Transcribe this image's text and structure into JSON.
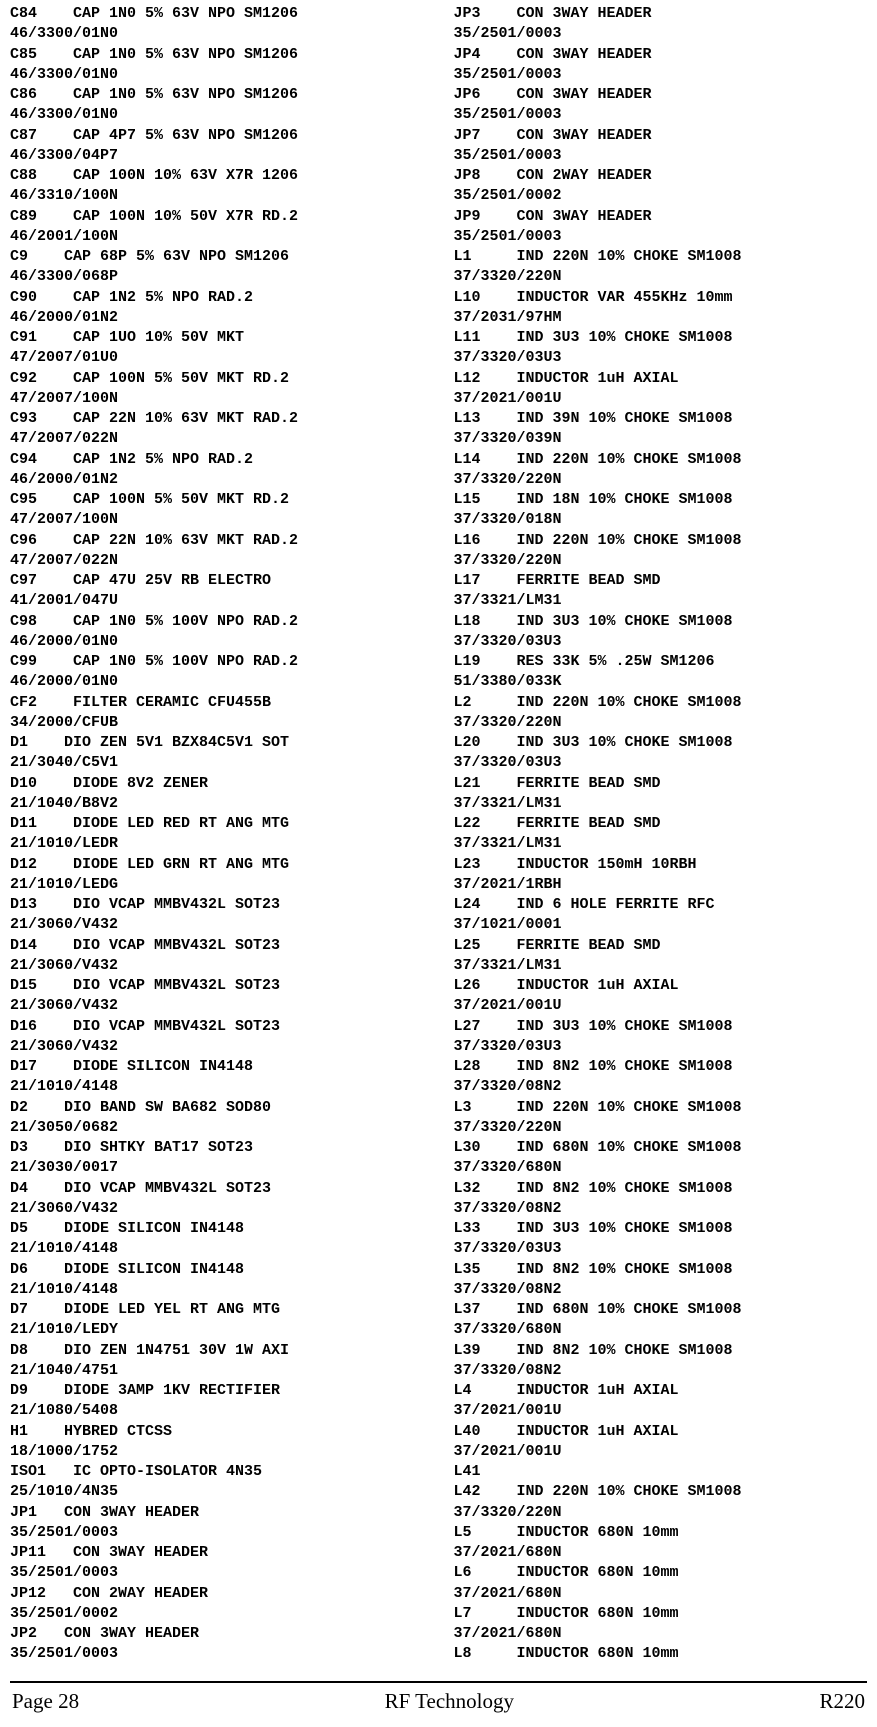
{
  "left_lines": [
    "C84    CAP 1N0 5% 63V NPO SM1206",
    "46/3300/01N0",
    "C85    CAP 1N0 5% 63V NPO SM1206",
    "46/3300/01N0",
    "C86    CAP 1N0 5% 63V NPO SM1206",
    "46/3300/01N0",
    "C87    CAP 4P7 5% 63V NPO SM1206",
    "46/3300/04P7",
    "C88    CAP 100N 10% 63V X7R 1206",
    "46/3310/100N",
    "C89    CAP 100N 10% 50V X7R RD.2",
    "46/2001/100N",
    "C9    CAP 68P 5% 63V NPO SM1206",
    "46/3300/068P",
    "C90    CAP 1N2 5% NPO RAD.2",
    "46/2000/01N2",
    "C91    CAP 1UO 10% 50V MKT",
    "47/2007/01U0",
    "C92    CAP 100N 5% 50V MKT RD.2",
    "47/2007/100N",
    "C93    CAP 22N 10% 63V MKT RAD.2",
    "47/2007/022N",
    "C94    CAP 1N2 5% NPO RAD.2",
    "46/2000/01N2",
    "C95    CAP 100N 5% 50V MKT RD.2",
    "47/2007/100N",
    "C96    CAP 22N 10% 63V MKT RAD.2",
    "47/2007/022N",
    "C97    CAP 47U 25V RB ELECTRO",
    "41/2001/047U",
    "C98    CAP 1N0 5% 100V NPO RAD.2",
    "46/2000/01N0",
    "C99    CAP 1N0 5% 100V NPO RAD.2",
    "46/2000/01N0",
    "CF2    FILTER CERAMIC CFU455B",
    "34/2000/CFUB",
    "D1    DIO ZEN 5V1 BZX84C5V1 SOT",
    "21/3040/C5V1",
    "D10    DIODE 8V2 ZENER",
    "21/1040/B8V2",
    "D11    DIODE LED RED RT ANG MTG",
    "21/1010/LEDR",
    "D12    DIODE LED GRN RT ANG MTG",
    "21/1010/LEDG",
    "D13    DIO VCAP MMBV432L SOT23",
    "21/3060/V432",
    "D14    DIO VCAP MMBV432L SOT23",
    "21/3060/V432",
    "D15    DIO VCAP MMBV432L SOT23",
    "21/3060/V432",
    "D16    DIO VCAP MMBV432L SOT23",
    "21/3060/V432",
    "D17    DIODE SILICON IN4148",
    "21/1010/4148",
    "D2    DIO BAND SW BA682 SOD80",
    "21/3050/0682",
    "D3    DIO SHTKY BAT17 SOT23",
    "21/3030/0017",
    "D4    DIO VCAP MMBV432L SOT23",
    "21/3060/V432",
    "D5    DIODE SILICON IN4148",
    "21/1010/4148",
    "D6    DIODE SILICON IN4148",
    "21/1010/4148",
    "D7    DIODE LED YEL RT ANG MTG",
    "21/1010/LEDY",
    "D8    DIO ZEN 1N4751 30V 1W AXI",
    "21/1040/4751",
    "D9    DIODE 3AMP 1KV RECTIFIER",
    "21/1080/5408",
    "H1    HYBRED CTCSS",
    "18/1000/1752",
    "ISO1   IC OPTO-ISOLATOR 4N35",
    "25/1010/4N35",
    "JP1   CON 3WAY HEADER",
    "35/2501/0003",
    "JP11   CON 3WAY HEADER",
    "35/2501/0003",
    "JP12   CON 2WAY HEADER",
    "35/2501/0002",
    "JP2   CON 3WAY HEADER",
    "35/2501/0003"
  ],
  "right_lines": [
    "JP3    CON 3WAY HEADER",
    "35/2501/0003",
    "JP4    CON 3WAY HEADER",
    "35/2501/0003",
    "JP6    CON 3WAY HEADER",
    "35/2501/0003",
    "JP7    CON 3WAY HEADER",
    "35/2501/0003",
    "JP8    CON 2WAY HEADER",
    "35/2501/0002",
    "JP9    CON 3WAY HEADER",
    "35/2501/0003",
    "L1     IND 220N 10% CHOKE SM1008",
    "37/3320/220N",
    "L10    INDUCTOR VAR 455KHz 10mm",
    "37/2031/97HM",
    "L11    IND 3U3 10% CHOKE SM1008",
    "37/3320/03U3",
    "L12    INDUCTOR 1uH AXIAL",
    "37/2021/001U",
    "L13    IND 39N 10% CHOKE SM1008",
    "37/3320/039N",
    "L14    IND 220N 10% CHOKE SM1008",
    "37/3320/220N",
    "L15    IND 18N 10% CHOKE SM1008",
    "37/3320/018N",
    "L16    IND 220N 10% CHOKE SM1008",
    "37/3320/220N",
    "L17    FERRITE BEAD SMD",
    "37/3321/LM31",
    "L18    IND 3U3 10% CHOKE SM1008",
    "37/3320/03U3",
    "L19    RES 33K 5% .25W SM1206",
    "51/3380/033K",
    "L2     IND 220N 10% CHOKE SM1008",
    "37/3320/220N",
    "L20    IND 3U3 10% CHOKE SM1008",
    "37/3320/03U3",
    "L21    FERRITE BEAD SMD",
    "37/3321/LM31",
    "L22    FERRITE BEAD SMD",
    "37/3321/LM31",
    "L23    INDUCTOR 150mH 10RBH",
    "37/2021/1RBH",
    "L24    IND 6 HOLE FERRITE RFC",
    "37/1021/0001",
    "L25    FERRITE BEAD SMD",
    "37/3321/LM31",
    "L26    INDUCTOR 1uH AXIAL",
    "37/2021/001U",
    "L27    IND 3U3 10% CHOKE SM1008",
    "37/3320/03U3",
    "L28    IND 8N2 10% CHOKE SM1008",
    "37/3320/08N2",
    "L3     IND 220N 10% CHOKE SM1008",
    "37/3320/220N",
    "L30    IND 680N 10% CHOKE SM1008",
    "37/3320/680N",
    "L32    IND 8N2 10% CHOKE SM1008",
    "37/3320/08N2",
    "L33    IND 3U3 10% CHOKE SM1008",
    "37/3320/03U3",
    "L35    IND 8N2 10% CHOKE SM1008",
    "37/3320/08N2",
    "L37    IND 680N 10% CHOKE SM1008",
    "37/3320/680N",
    "L39    IND 8N2 10% CHOKE SM1008",
    "37/3320/08N2",
    "L4     INDUCTOR 1uH AXIAL",
    "37/2021/001U",
    "L40    INDUCTOR 1uH AXIAL",
    "37/2021/001U",
    "L41",
    "L42    IND 220N 10% CHOKE SM1008",
    "37/3320/220N",
    "L5     INDUCTOR 680N 10mm",
    "37/2021/680N",
    "L6     INDUCTOR 680N 10mm",
    "37/2021/680N",
    "L7     INDUCTOR 680N 10mm",
    "37/2021/680N",
    "L8     INDUCTOR 680N 10mm"
  ],
  "footer": {
    "left": "Page 28",
    "center": "RF Technology",
    "right": "R220"
  }
}
